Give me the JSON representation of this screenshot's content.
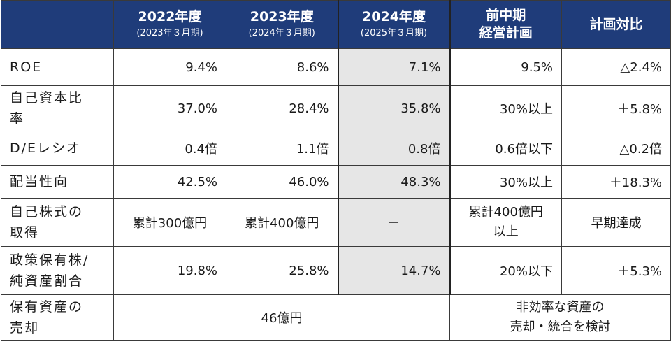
{
  "header": {
    "corner": "",
    "columns": [
      {
        "year": "2022年度",
        "sub": "(2023年３月期)"
      },
      {
        "year": "2023年度",
        "sub": "(2024年３月期)"
      },
      {
        "year": "2024年度",
        "sub": "(2025年３月期)"
      },
      {
        "line1": "前中期",
        "line2": "経営計画"
      },
      {
        "title": "計画対比"
      }
    ]
  },
  "rows": [
    {
      "label": "ROE",
      "values": [
        "9.4%",
        "8.6%",
        "7.1%",
        "9.5%",
        "△2.4%"
      ]
    },
    {
      "label_lines": [
        "自己資本比",
        "率"
      ],
      "values": [
        "37.0%",
        "28.4%",
        "35.8%",
        "30%以上",
        "＋5.8%"
      ]
    },
    {
      "label": "D/Eレシオ",
      "values": [
        "0.4倍",
        "1.1倍",
        "0.8倍",
        "0.6倍以下",
        "△0.2倍"
      ]
    },
    {
      "label": "配当性向",
      "values": [
        "42.5%",
        "46.0%",
        "48.3%",
        "30%以上",
        "＋18.3%"
      ]
    },
    {
      "label_lines": [
        "自己株式の",
        "取得"
      ],
      "values": [
        "累計300億円",
        "累計400億円",
        "－"
      ],
      "plan_lines": [
        "累計400億円",
        "以上"
      ],
      "comparison": "早期達成"
    },
    {
      "label_lines": [
        "政策保有株/",
        "純資産割合"
      ],
      "values": [
        "19.8%",
        "25.8%",
        "14.7%",
        "20%以下",
        "＋5.3%"
      ]
    },
    {
      "label_lines": [
        "保有資産の",
        "売却"
      ],
      "merged_value": "46億円",
      "plan_lines": [
        "非効率な資産の",
        "売却・統合を検討"
      ]
    }
  ]
}
